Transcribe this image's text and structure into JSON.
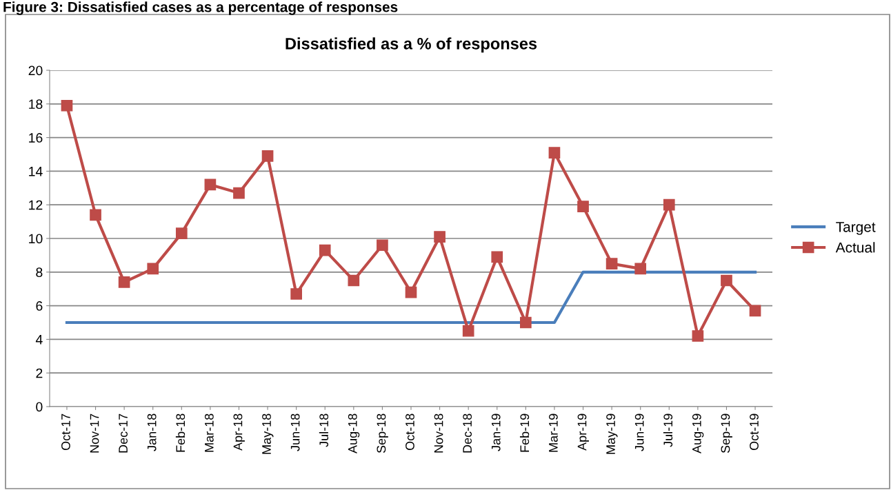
{
  "chart_data": {
    "type": "line",
    "title": "Dissatisfied as a % of responses",
    "annotations": [
      "Figure 3: Dissatisfied cases as a percentage of responses"
    ],
    "categories": [
      "Oct-17",
      "Nov-17",
      "Dec-17",
      "Jan-18",
      "Feb-18",
      "Mar-18",
      "Apr-18",
      "May-18",
      "Jun-18",
      "Jul-18",
      "Aug-18",
      "Sep-18",
      "Oct-18",
      "Nov-18",
      "Dec-18",
      "Jan-19",
      "Feb-19",
      "Mar-19",
      "Apr-19",
      "May-19",
      "Jun-19",
      "Jul-19",
      "Aug-19",
      "Sep-19",
      "Oct-19"
    ],
    "series": [
      {
        "name": "Target",
        "color": "#4a7ebb",
        "marker": "none",
        "values": [
          5,
          5,
          5,
          5,
          5,
          5,
          5,
          5,
          5,
          5,
          5,
          5,
          5,
          5,
          5,
          5,
          5,
          5,
          8,
          8,
          8,
          8,
          8,
          8,
          8
        ]
      },
      {
        "name": "Actual",
        "color": "#be4b48",
        "marker": "square",
        "values": [
          17.9,
          11.4,
          7.4,
          8.2,
          10.3,
          13.2,
          12.7,
          14.9,
          6.7,
          9.3,
          7.5,
          9.6,
          6.8,
          10.1,
          4.5,
          8.9,
          5.0,
          15.1,
          11.9,
          8.5,
          8.2,
          12.0,
          4.2,
          7.5,
          5.7
        ]
      }
    ],
    "ylim": [
      0,
      20
    ],
    "yticks": [
      0,
      2,
      4,
      6,
      8,
      10,
      12,
      14,
      16,
      18,
      20
    ],
    "grid": "y",
    "legend": "right"
  }
}
